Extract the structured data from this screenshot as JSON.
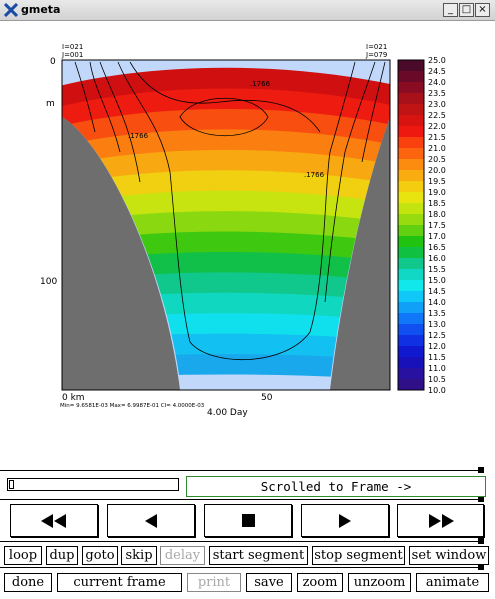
{
  "window": {
    "title": "gmeta",
    "minimize_label": "_",
    "maximize_label": "□",
    "close_label": "×"
  },
  "plot": {
    "corner_left_line1": "I=021",
    "corner_left_line2": "J=001",
    "corner_right_line1": "I=021",
    "corner_right_line2": "J=079",
    "y_label_0": "0",
    "y_label_m": "m",
    "y_label_100": "100",
    "x_label_0": "0 km",
    "x_label_50": "50",
    "contour_label_1": ".1766",
    "contour_label_2": ".1766",
    "contour_label_3": ".1766",
    "footer_stats": "Min= 9.6581E-03  Max= 6.9987E-01  CI= 4.0000E-03",
    "time_label": "4.00 Day"
  },
  "colorbar": {
    "labels": [
      "25.0",
      "24.5",
      "24.0",
      "23.5",
      "23.0",
      "22.5",
      "22.0",
      "21.5",
      "21.0",
      "20.5",
      "20.0",
      "19.5",
      "19.0",
      "18.5",
      "18.0",
      "17.5",
      "17.0",
      "16.5",
      "16.0",
      "15.5",
      "15.0",
      "14.5",
      "14.0",
      "13.5",
      "13.0",
      "12.5",
      "12.0",
      "11.5",
      "11.0",
      "10.5",
      "10.0"
    ],
    "colors": [
      "#4a0a2a",
      "#6a0a28",
      "#8a0c22",
      "#a8101a",
      "#c01414",
      "#d81410",
      "#ee1810",
      "#fb4010",
      "#fc6410",
      "#fb8c10",
      "#f8ac10",
      "#f4cc10",
      "#e8e410",
      "#c4e410",
      "#98dc10",
      "#60d010",
      "#20c410",
      "#10c040",
      "#10c88c",
      "#10d8c4",
      "#10e8ec",
      "#10c8f8",
      "#10a0f8",
      "#1078f8",
      "#1050f0",
      "#1030e4",
      "#1018d0",
      "#1810b8",
      "#2810a0",
      "#301088"
    ],
    "colormap_colors": [
      "#1aa8ec",
      "#12c0f2",
      "#10e0ee",
      "#10d8c0",
      "#10c88c",
      "#10c048",
      "#3ec810",
      "#8ad810",
      "#c8e410",
      "#f0d010",
      "#f8a810",
      "#fa7e10",
      "#f84e10",
      "#ee1c10",
      "#d01010"
    ],
    "bathymetry_color": "#6e6e6e",
    "ice_color": "#c2d8fb"
  },
  "status": {
    "text": "Scrolled to Frame ->"
  },
  "playback": {
    "rewind_icon": "fast-rewind-icon",
    "back_icon": "step-back-icon",
    "stop_icon": "stop-icon",
    "play_icon": "play-icon",
    "forward_icon": "fast-forward-icon"
  },
  "toolbar1": {
    "loop": "loop",
    "dup": "dup",
    "goto": "goto",
    "skip": "skip",
    "delay": "delay",
    "start_segment": "start segment",
    "stop_segment": "stop segment",
    "set_window": "set window"
  },
  "toolbar2": {
    "done": "done",
    "current_frame": "current frame",
    "print": "print",
    "save": "save",
    "zoom": "zoom",
    "unzoom": "unzoom",
    "animate": "animate"
  }
}
